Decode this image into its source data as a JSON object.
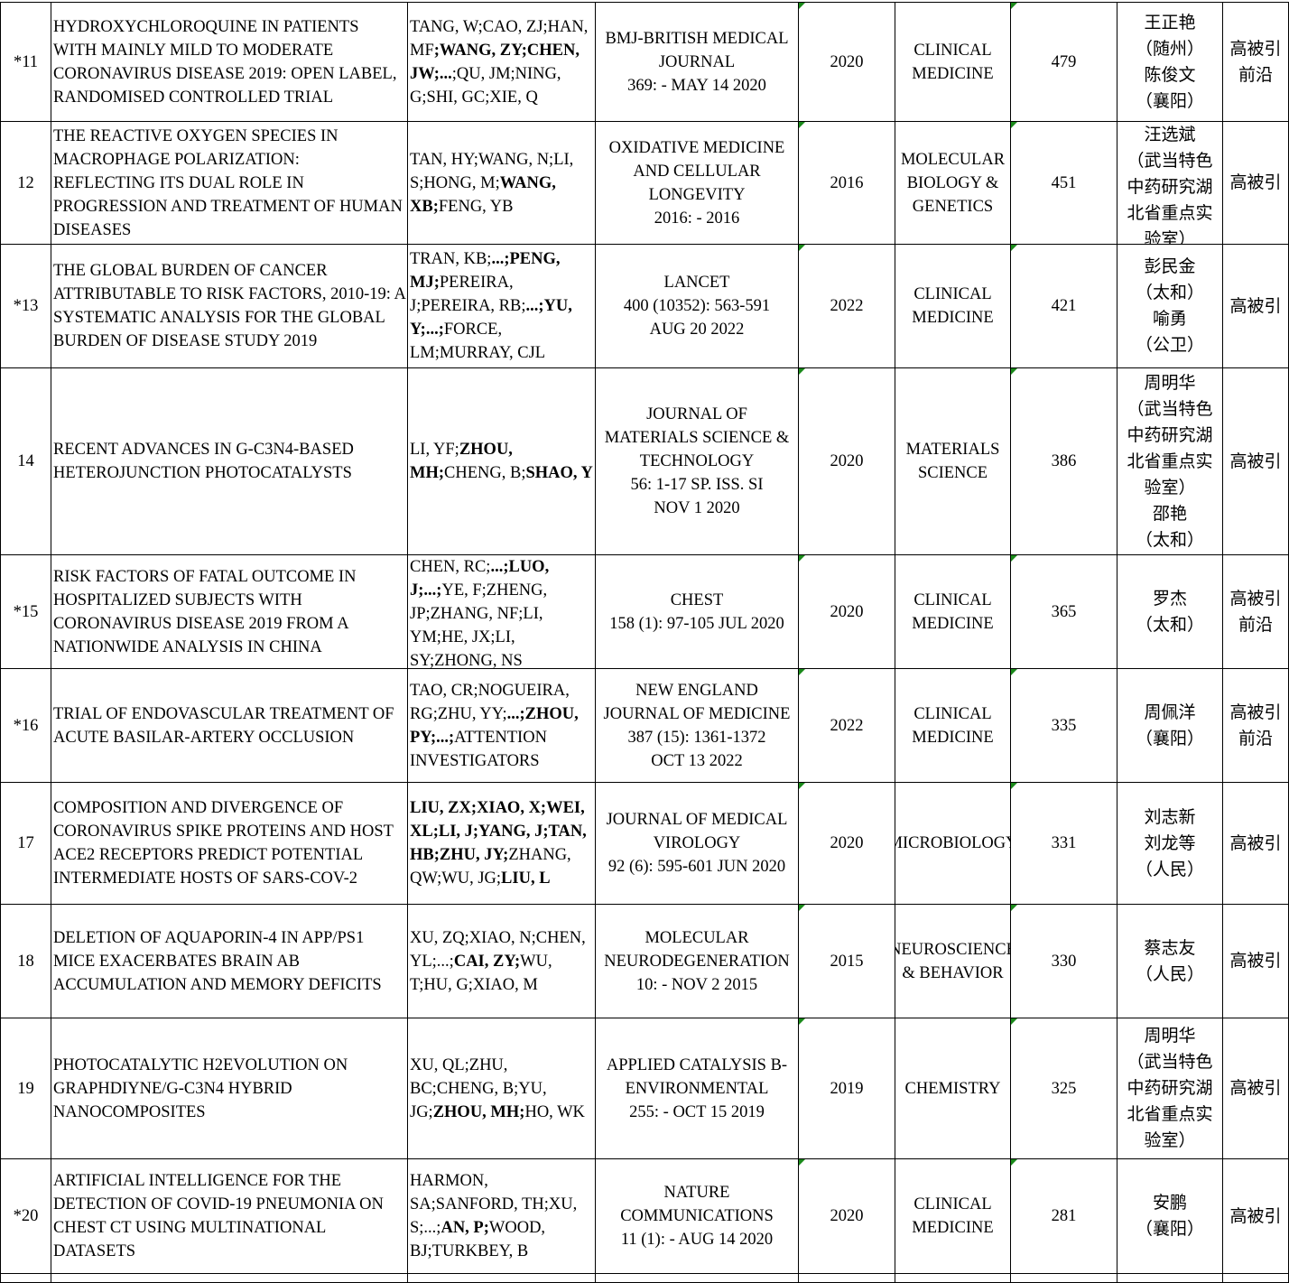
{
  "rows": [
    {
      "no": "*11",
      "title": "HYDROXYCHLOROQUINE IN PATIENTS WITH MAINLY MILD TO MODERATE CORONAVIRUS DISEASE 2019: OPEN LABEL, RANDOMISED CONTROLLED TRIAL",
      "authors": [
        {
          "t": "TANG, W;CAO, ZJ;HAN, MF",
          "b": false
        },
        {
          "t": ";WANG, ZY;CHEN, JW;...",
          "b": true
        },
        {
          "t": ";QU, JM;NING, G;SHI, GC;XIE, Q",
          "b": false
        }
      ],
      "journal": "BMJ-BRITISH MEDICAL JOURNAL\n369: - MAY 14 2020",
      "year": "2020",
      "field": "CLINICAL MEDICINE",
      "cites": "479",
      "people": "王正艳\n（随州）\n陈俊文\n（襄阳）",
      "tag": "高被引\n前沿"
    },
    {
      "no": "12",
      "title": "THE REACTIVE OXYGEN SPECIES IN MACROPHAGE POLARIZATION: REFLECTING ITS DUAL ROLE IN PROGRESSION AND TREATMENT OF HUMAN DISEASES",
      "authors": [
        {
          "t": "TAN, HY;WANG, N;LI, S;HONG, M;",
          "b": false
        },
        {
          "t": "WANG, XB;",
          "b": true
        },
        {
          "t": "FENG, YB",
          "b": false
        }
      ],
      "journal": "OXIDATIVE MEDICINE AND CELLULAR LONGEVITY\n2016: - 2016",
      "year": "2016",
      "field": "MOLECULAR BIOLOGY & GENETICS",
      "cites": "451",
      "people": "汪选斌\n（武当特色中药研究湖北省重点实验室）",
      "tag": "高被引"
    },
    {
      "no": "*13",
      "title": "THE GLOBAL BURDEN OF CANCER ATTRIBUTABLE TO RISK FACTORS, 2010-19: A SYSTEMATIC ANALYSIS FOR THE GLOBAL BURDEN OF DISEASE STUDY 2019",
      "authors": [
        {
          "t": "TRAN, KB;",
          "b": false
        },
        {
          "t": "...;PENG, MJ;",
          "b": true
        },
        {
          "t": "PEREIRA, J;PEREIRA, RB;",
          "b": false
        },
        {
          "t": "...;YU, Y;...;",
          "b": true
        },
        {
          "t": "FORCE, LM;MURRAY, CJL",
          "b": false
        }
      ],
      "journal": "LANCET\n400 (10352): 563-591\nAUG 20 2022",
      "year": "2022",
      "field": "CLINICAL MEDICINE",
      "cites": "421",
      "people": "彭民金\n（太和）\n喻勇\n（公卫）",
      "tag": "高被引"
    },
    {
      "no": "14",
      "title": "RECENT ADVANCES IN G-C3N4-BASED HETEROJUNCTION PHOTOCATALYSTS",
      "authors": [
        {
          "t": "LI, YF;",
          "b": false
        },
        {
          "t": "ZHOU, MH;",
          "b": true
        },
        {
          "t": "CHENG, B;",
          "b": false
        },
        {
          "t": "SHAO, Y",
          "b": true
        }
      ],
      "journal": "JOURNAL OF MATERIALS SCIENCE & TECHNOLOGY\n56: 1-17 SP. ISS. SI\nNOV 1 2020",
      "year": "2020",
      "field": "MATERIALS SCIENCE",
      "cites": "386",
      "people": "周明华\n（武当特色中药研究湖北省重点实验室）\n邵艳\n（太和）",
      "tag": "高被引"
    },
    {
      "no": "*15",
      "title": "RISK FACTORS OF FATAL OUTCOME IN HOSPITALIZED SUBJECTS WITH CORONAVIRUS DISEASE 2019 FROM A NATIONWIDE ANALYSIS IN CHINA",
      "authors": [
        {
          "t": "CHEN, RC;",
          "b": false
        },
        {
          "t": "...;LUO, J;...;",
          "b": true
        },
        {
          "t": "YE, F;ZHENG, JP;ZHANG, NF;LI, YM;HE, JX;LI, SY;ZHONG, NS",
          "b": false
        }
      ],
      "journal": "CHEST\n158 (1): 97-105 JUL 2020",
      "year": "2020",
      "field": "CLINICAL MEDICINE",
      "cites": "365",
      "people": "罗杰\n（太和）",
      "tag": "高被引\n前沿"
    },
    {
      "no": "*16",
      "title": "TRIAL OF ENDOVASCULAR TREATMENT OF ACUTE BASILAR-ARTERY OCCLUSION",
      "authors": [
        {
          "t": "TAO, CR;NOGUEIRA, RG;ZHU, YY;",
          "b": false
        },
        {
          "t": "...;ZHOU, PY;...;",
          "b": true
        },
        {
          "t": "ATTENTION INVESTIGATORS",
          "b": false
        }
      ],
      "journal": "NEW ENGLAND JOURNAL OF MEDICINE\n387 (15): 1361-1372\nOCT 13 2022",
      "year": "2022",
      "field": "CLINICAL MEDICINE",
      "cites": "335",
      "people": "周佩洋\n（襄阳）",
      "tag": "高被引\n前沿"
    },
    {
      "no": "17",
      "title": "COMPOSITION AND DIVERGENCE OF CORONAVIRUS SPIKE PROTEINS AND HOST ACE2 RECEPTORS PREDICT POTENTIAL INTERMEDIATE HOSTS OF SARS-COV-2",
      "authors": [
        {
          "t": "LIU, ZX;XIAO, X;WEI, XL;LI, J;YANG, J;TAN, HB;ZHU, JY;",
          "b": true
        },
        {
          "t": "ZHANG, QW;WU, JG;",
          "b": false
        },
        {
          "t": "LIU, L",
          "b": true
        }
      ],
      "journal": "JOURNAL OF MEDICAL VIROLOGY\n92 (6): 595-601 JUN 2020",
      "year": "2020",
      "field": "MICROBIOLOGY",
      "cites": "331",
      "people": "刘志新\n刘龙等\n（人民）",
      "tag": "高被引"
    },
    {
      "no": "18",
      "title": "DELETION OF AQUAPORIN-4 IN APP/PS1 MICE EXACERBATES BRAIN AB ACCUMULATION AND MEMORY DEFICITS",
      "authors": [
        {
          "t": "XU, ZQ;XIAO, N;CHEN, YL;...;",
          "b": false
        },
        {
          "t": "CAI, ZY;",
          "b": true
        },
        {
          "t": "WU, T;HU, G;XIAO, M",
          "b": false
        }
      ],
      "journal": "MOLECULAR NEURODEGENERATION\n10: - NOV 2 2015",
      "year": "2015",
      "field": "NEUROSCIENCE & BEHAVIOR",
      "cites": "330",
      "people": "蔡志友\n（人民）",
      "tag": "高被引"
    },
    {
      "no": "19",
      "title": "PHOTOCATALYTIC H2EVOLUTION ON GRAPHDIYNE/G-C3N4 HYBRID NANOCOMPOSITES",
      "authors": [
        {
          "t": "XU, QL;ZHU, BC;CHENG, B;YU, JG;",
          "b": false
        },
        {
          "t": "ZHOU, MH;",
          "b": true
        },
        {
          "t": "HO, WK",
          "b": false
        }
      ],
      "journal": "APPLIED CATALYSIS B-ENVIRONMENTAL\n255: - OCT 15 2019",
      "year": "2019",
      "field": "CHEMISTRY",
      "cites": "325",
      "people": "周明华\n（武当特色中药研究湖北省重点实验室）",
      "tag": "高被引"
    },
    {
      "no": "*20",
      "title": "ARTIFICIAL INTELLIGENCE FOR THE DETECTION OF COVID-19 PNEUMONIA ON CHEST CT USING MULTINATIONAL DATASETS",
      "authors": [
        {
          "t": "HARMON, SA;SANFORD, TH;XU, S;...;",
          "b": false
        },
        {
          "t": "AN, P;",
          "b": true
        },
        {
          "t": "WOOD, BJ;TURKBEY, B",
          "b": false
        }
      ],
      "journal": "NATURE COMMUNICATIONS\n11 (1): - AUG 14 2020",
      "year": "2020",
      "field": "CLINICAL MEDICINE",
      "cites": "281",
      "people": "安鹏\n（襄阳）",
      "tag": "高被引"
    }
  ],
  "colors": {
    "grid": "#000000",
    "comment_marker": "#1a8a1a"
  }
}
